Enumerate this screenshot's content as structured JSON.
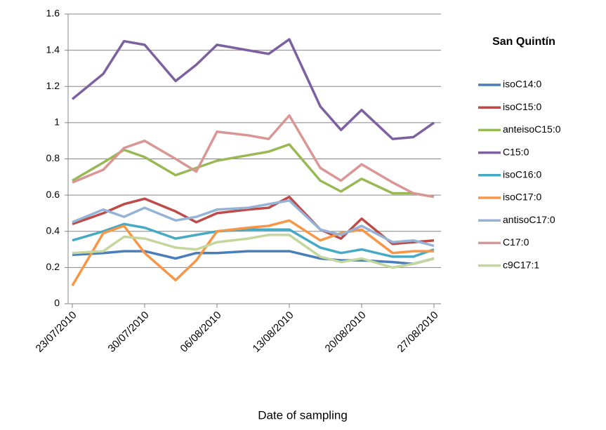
{
  "chart_data": {
    "type": "line",
    "legend_title": "San Quintín",
    "x_label": "Date of sampling",
    "x": [
      "23/07/2010",
      "26/07/2010",
      "28/07/2010",
      "30/07/2010",
      "02/08/2010",
      "04/08/2010",
      "06/08/2010",
      "09/08/2010",
      "11/08/2010",
      "13/08/2010",
      "16/08/2010",
      "18/08/2010",
      "20/08/2010",
      "23/08/2010",
      "25/08/2010",
      "27/08/2010"
    ],
    "xlim": [
      "23/07/2010",
      "27/08/2010"
    ],
    "xticks": [
      "23/07/2010",
      "30/07/2010",
      "06/08/2010",
      "13/08/2010",
      "20/08/2010",
      "27/08/2010"
    ],
    "ylim": [
      0,
      1.6
    ],
    "yticks": [
      0,
      0.2,
      0.4,
      0.6,
      0.8,
      1,
      1.2,
      1.4,
      1.6
    ],
    "grid": true,
    "legend": "right",
    "series": [
      {
        "name": "isoC14:0",
        "color": "#4a7ebb",
        "values": [
          0.27,
          0.28,
          0.29,
          0.29,
          0.25,
          0.28,
          0.28,
          0.29,
          0.29,
          0.29,
          0.25,
          0.24,
          0.24,
          0.23,
          0.22,
          0.25
        ]
      },
      {
        "name": "isoC15:0",
        "color": "#be4b48",
        "values": [
          0.44,
          0.5,
          0.55,
          0.58,
          0.51,
          0.45,
          0.5,
          0.52,
          0.53,
          0.59,
          0.41,
          0.36,
          0.47,
          0.33,
          0.34,
          0.35
        ]
      },
      {
        "name": "anteisoC15:0",
        "color": "#98b954",
        "values": [
          0.68,
          0.78,
          0.85,
          0.81,
          0.71,
          0.75,
          0.79,
          0.82,
          0.84,
          0.88,
          0.68,
          0.62,
          0.69,
          0.61,
          0.61,
          0.59
        ]
      },
      {
        "name": "C15:0",
        "color": "#7d60a0",
        "values": [
          1.13,
          1.27,
          1.45,
          1.43,
          1.23,
          1.32,
          1.43,
          1.4,
          1.38,
          1.46,
          1.09,
          0.96,
          1.07,
          0.91,
          0.92,
          1.0
        ]
      },
      {
        "name": "isoC16:0",
        "color": "#46aac5",
        "values": [
          0.35,
          0.4,
          0.44,
          0.42,
          0.36,
          0.38,
          0.4,
          0.41,
          0.41,
          0.41,
          0.31,
          0.28,
          0.3,
          0.26,
          0.26,
          0.3
        ]
      },
      {
        "name": "isoC17:0",
        "color": "#f79646",
        "values": [
          0.1,
          0.39,
          0.43,
          0.28,
          0.13,
          0.24,
          0.4,
          0.42,
          0.43,
          0.46,
          0.35,
          0.39,
          0.41,
          0.28,
          0.29,
          0.29
        ]
      },
      {
        "name": "antisoC17:0",
        "color": "#95b3d7",
        "values": [
          0.45,
          0.52,
          0.48,
          0.53,
          0.46,
          0.48,
          0.52,
          0.53,
          0.55,
          0.57,
          0.41,
          0.38,
          0.43,
          0.34,
          0.35,
          0.32
        ]
      },
      {
        "name": "C17:0",
        "color": "#d99694",
        "values": [
          0.67,
          0.74,
          0.86,
          0.9,
          0.8,
          0.73,
          0.95,
          0.93,
          0.91,
          1.04,
          0.75,
          0.68,
          0.77,
          0.67,
          0.61,
          0.59
        ]
      },
      {
        "name": "c9C17:1",
        "color": "#c3d69b",
        "values": [
          0.28,
          0.29,
          0.37,
          0.36,
          0.31,
          0.3,
          0.34,
          0.36,
          0.38,
          0.38,
          0.26,
          0.23,
          0.25,
          0.2,
          0.22,
          0.25
        ]
      }
    ]
  }
}
